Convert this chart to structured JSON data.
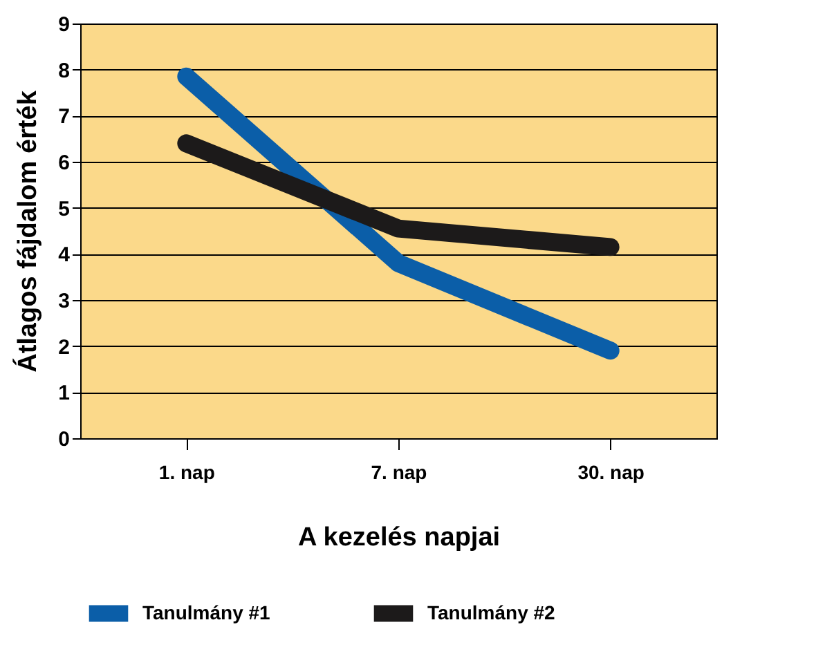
{
  "chart_data": {
    "type": "line",
    "categories": [
      "1. nap",
      "7. nap",
      "30. nap"
    ],
    "series": [
      {
        "name": "Tanulmány #1",
        "color": "#0b5ea8",
        "values": [
          7.85,
          3.8,
          1.9
        ]
      },
      {
        "name": "Tanulmány #2",
        "color": "#1c1a1a",
        "values": [
          6.4,
          4.55,
          4.15
        ]
      }
    ],
    "xlabel": "A kezelés napjai",
    "ylabel": "Átlagos fájdalom érték",
    "ylim": [
      0,
      9
    ],
    "yticks": [
      0,
      1,
      2,
      3,
      4,
      5,
      6,
      7,
      8,
      9
    ],
    "grid": "y",
    "legend": "bottom",
    "marker": "none",
    "line_style": "solid"
  }
}
